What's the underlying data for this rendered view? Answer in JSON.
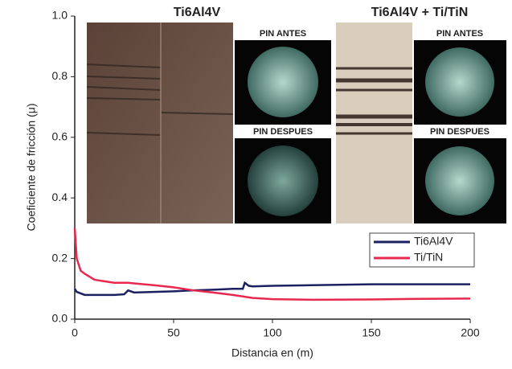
{
  "chart_data": {
    "type": "line",
    "xlabel": "Distancia en (m)",
    "ylabel": "Coeficiente de fricción (μ)",
    "x": [
      0,
      1,
      3,
      5,
      10,
      15,
      20,
      25,
      27,
      30,
      40,
      50,
      60,
      70,
      80,
      85,
      86,
      88,
      90,
      100,
      120,
      150,
      175,
      200
    ],
    "series": [
      {
        "name": "Ti6Al4V",
        "color": "#1b2160",
        "values": [
          0.1,
          0.09,
          0.085,
          0.08,
          0.08,
          0.08,
          0.08,
          0.082,
          0.095,
          0.088,
          0.09,
          0.092,
          0.095,
          0.097,
          0.1,
          0.1,
          0.12,
          0.11,
          0.108,
          0.11,
          0.112,
          0.115,
          0.115,
          0.115
        ]
      },
      {
        "name": "Ti/TiN",
        "color": "#e8294f",
        "values": [
          0.3,
          0.2,
          0.16,
          0.15,
          0.13,
          0.125,
          0.12,
          0.12,
          0.12,
          0.118,
          0.112,
          0.105,
          0.095,
          0.088,
          0.08,
          0.075,
          0.074,
          0.072,
          0.07,
          0.066,
          0.064,
          0.065,
          0.067,
          0.068
        ]
      }
    ],
    "xlim": [
      0,
      200
    ],
    "xticks": [
      0,
      50,
      100,
      150,
      200
    ],
    "ylim": [
      0,
      1
    ],
    "yticks": [
      {
        "value": 0,
        "label": "0.0"
      },
      0.2,
      0.4,
      0.6,
      0.8,
      {
        "value": 1,
        "label": "1.0"
      }
    ],
    "legend": "right",
    "annotations": [
      "Ti6Al4V",
      "Ti6Al4V + Ti/TiN",
      "PIN ANTES",
      "PIN DESPUES",
      "PIN ANTES",
      "PIN DESPUES"
    ]
  }
}
